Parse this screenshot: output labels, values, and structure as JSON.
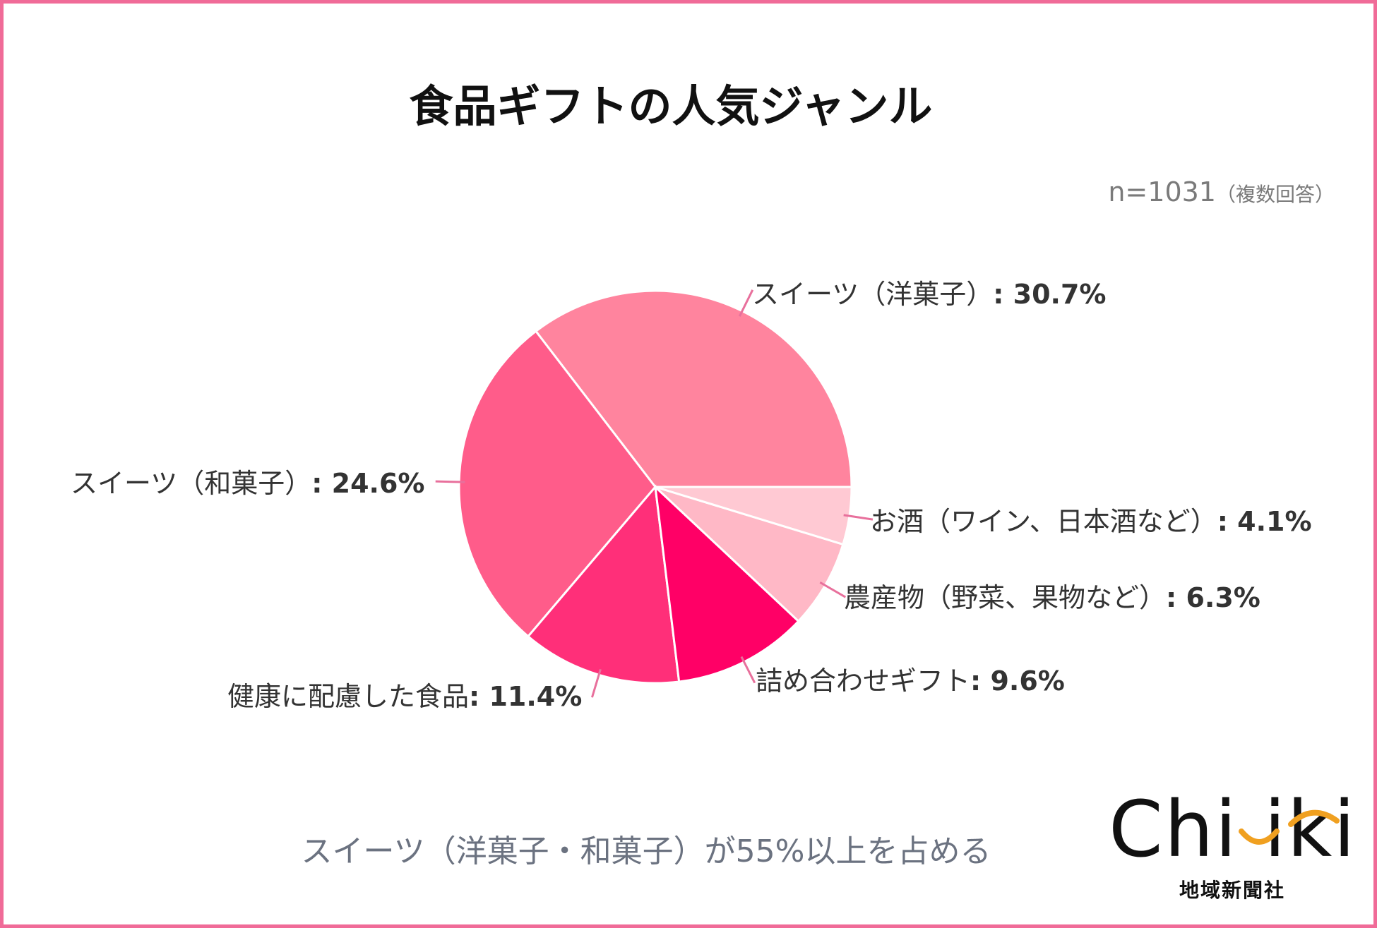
{
  "title": "食品ギフトの人気ジャンル",
  "sample": {
    "n": "n=1031",
    "note": "（複数回答）"
  },
  "subtitle": "スイーツ（洋菓子・和菓子）が55%以上を占める",
  "logo": {
    "brand": "Chiiki",
    "company": "地域新聞社"
  },
  "colors": {
    "frame": "#f06b98",
    "leader": "#e8709c",
    "slices": [
      "#ff849e",
      "#ff5c8a",
      "#ff2f79",
      "#ff0066",
      "#ffb8c6",
      "#ffc9d3"
    ]
  },
  "chart_data": {
    "type": "pie",
    "title": "食品ギフトの人気ジャンル",
    "slices": [
      {
        "label": "スイーツ（洋菓子）",
        "value": 30.7,
        "display": "30.7%"
      },
      {
        "label": "スイーツ（和菓子）",
        "value": 24.6,
        "display": "24.6%"
      },
      {
        "label": "健康に配慮した食品",
        "value": 11.4,
        "display": "11.4%"
      },
      {
        "label": "詰め合わせギフト",
        "value": 9.6,
        "display": "9.6%"
      },
      {
        "label": "農産物（野菜、果物など）",
        "value": 6.3,
        "display": "6.3%"
      },
      {
        "label": "お酒（ワイン、日本酒など）",
        "value": 4.1,
        "display": "4.1%"
      }
    ],
    "start": "3 o'clock",
    "direction": "counterclockwise",
    "legend": "none (direct labels)"
  }
}
